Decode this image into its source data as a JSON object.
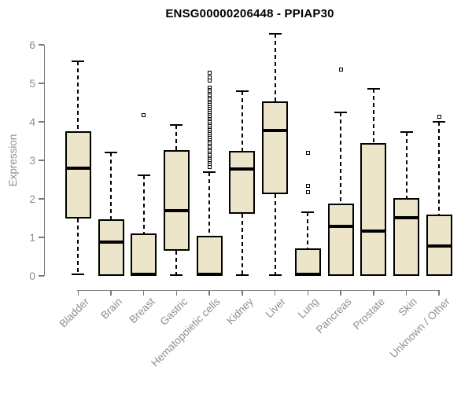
{
  "colors": {
    "box_fill": "#ece5c9",
    "box_border": "#000000",
    "median": "#000000",
    "whisker": "#000000",
    "axis": "#7a7a7a",
    "tick_text": "#8d8f92",
    "title_text": "#000000",
    "background": "#ffffff"
  },
  "chart_data": {
    "type": "boxplot",
    "title": "ENSG00000206448 - PPIAP30",
    "xlabel": "",
    "ylabel": "Expression",
    "ylim": [
      0,
      6.3
    ],
    "grid": false,
    "y_ticks": [
      0,
      1,
      2,
      3,
      4,
      5,
      6
    ],
    "categories": [
      "Bladder",
      "Brain",
      "Breast",
      "Gastric",
      "Hematopoietic cells",
      "Kidney",
      "Liver",
      "Lung",
      "Pancreas",
      "Prostate",
      "Skin",
      "Unknown / Other"
    ],
    "series": [
      {
        "name": "Bladder",
        "low": 0.05,
        "q1": 1.5,
        "median": 2.8,
        "q3": 3.75,
        "high": 5.57,
        "outliers": []
      },
      {
        "name": "Brain",
        "low": 0.0,
        "q1": 0.0,
        "median": 0.88,
        "q3": 1.47,
        "high": 3.2,
        "outliers": []
      },
      {
        "name": "Breast",
        "low": 0.0,
        "q1": 0.0,
        "median": 0.05,
        "q3": 1.11,
        "high": 2.62,
        "outliers": [
          4.18
        ]
      },
      {
        "name": "Gastric",
        "low": 0.02,
        "q1": 0.65,
        "median": 1.69,
        "q3": 3.27,
        "high": 3.91,
        "outliers": []
      },
      {
        "name": "Hematopoietic cells",
        "low": 0.0,
        "q1": 0.0,
        "median": 0.05,
        "q3": 1.05,
        "high": 2.7,
        "outliers": [
          5.27,
          5.16,
          5.08,
          4.88,
          4.83,
          4.78,
          4.73,
          4.68,
          4.63,
          4.58,
          4.53,
          4.48,
          4.43,
          4.38,
          4.33,
          4.28,
          4.23,
          4.18,
          4.13,
          4.08,
          4.03,
          3.98,
          3.93,
          3.88,
          3.83,
          3.78,
          3.73,
          3.68,
          3.63,
          3.58,
          3.53,
          3.48,
          3.43,
          3.38,
          3.33,
          3.28,
          3.23,
          3.18,
          3.13,
          3.08,
          3.03,
          2.98,
          2.93,
          2.88,
          2.83
        ]
      },
      {
        "name": "Kidney",
        "low": 0.02,
        "q1": 1.61,
        "median": 2.78,
        "q3": 3.25,
        "high": 4.8,
        "outliers": []
      },
      {
        "name": "Liver",
        "low": 0.02,
        "q1": 2.12,
        "median": 3.78,
        "q3": 4.54,
        "high": 6.28,
        "outliers": []
      },
      {
        "name": "Lung",
        "low": 0.0,
        "q1": 0.0,
        "median": 0.05,
        "q3": 0.72,
        "high": 1.65,
        "outliers": [
          2.18,
          2.33,
          3.2
        ]
      },
      {
        "name": "Pancreas",
        "low": 0.0,
        "q1": 0.0,
        "median": 1.29,
        "q3": 1.87,
        "high": 4.25,
        "outliers": [
          5.36
        ]
      },
      {
        "name": "Prostate",
        "low": 0.0,
        "q1": 0.0,
        "median": 1.16,
        "q3": 3.45,
        "high": 4.86,
        "outliers": []
      },
      {
        "name": "Skin",
        "low": 0.0,
        "q1": 0.0,
        "median": 1.52,
        "q3": 2.02,
        "high": 3.74,
        "outliers": []
      },
      {
        "name": "Unknown / Other",
        "low": 0.0,
        "q1": 0.0,
        "median": 0.78,
        "q3": 1.6,
        "high": 4.0,
        "outliers": [
          4.14
        ]
      }
    ]
  }
}
